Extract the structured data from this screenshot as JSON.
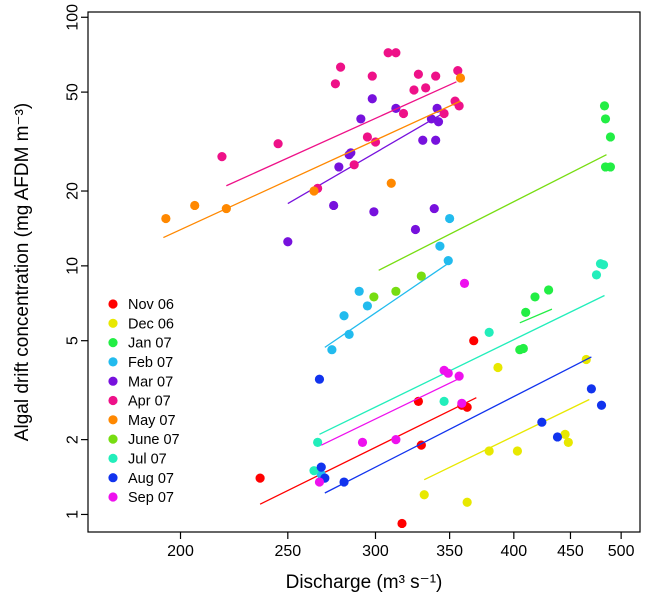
{
  "chart_data": {
    "type": "scatter",
    "title": "",
    "xlabel": "Discharge (m³ s⁻¹)",
    "ylabel": "Algal drift concentration (mg AFDM m⁻³)",
    "x_scale": "log",
    "y_scale": "log",
    "xlim": [
      165,
      520
    ],
    "ylim": [
      0.85,
      105
    ],
    "x_ticks": [
      200,
      250,
      300,
      350,
      400,
      450,
      500
    ],
    "y_ticks": [
      1,
      2,
      5,
      10,
      20,
      50,
      100
    ],
    "grid": false,
    "legend_position": "bottom-left",
    "series": [
      {
        "name": "Nov 06",
        "color": "#ff0000",
        "points": [
          [
            236,
            1.4
          ],
          [
            317,
            0.92
          ],
          [
            328,
            2.85
          ],
          [
            330,
            1.9
          ],
          [
            359,
            2.75
          ],
          [
            363,
            2.7
          ],
          [
            368,
            5.0
          ]
        ],
        "fit": {
          "x": [
            236,
            370
          ],
          "y": [
            1.1,
            2.95
          ]
        }
      },
      {
        "name": "Dec 06",
        "color": "#e8e800",
        "points": [
          [
            332,
            1.2
          ],
          [
            363,
            1.12
          ],
          [
            380,
            1.8
          ],
          [
            387,
            3.9
          ],
          [
            403,
            1.8
          ],
          [
            445,
            2.1
          ],
          [
            448,
            1.95
          ],
          [
            465,
            4.2
          ]
        ],
        "fit": {
          "x": [
            332,
            468
          ],
          "y": [
            1.38,
            2.9
          ]
        }
      },
      {
        "name": "Jan 07",
        "color": "#22ee44",
        "points": [
          [
            405,
            4.6
          ],
          [
            408,
            4.65
          ],
          [
            410,
            6.5
          ],
          [
            418,
            7.5
          ],
          [
            430,
            8.0
          ],
          [
            483,
            44
          ],
          [
            484,
            39
          ],
          [
            484,
            25
          ],
          [
            489,
            25
          ],
          [
            489,
            33
          ]
        ],
        "fit": {
          "x": [
            405,
            433
          ],
          "y": [
            5.9,
            6.7
          ]
        }
      },
      {
        "name": "Feb 07",
        "color": "#22bbee",
        "points": [
          [
            268,
            1.45
          ],
          [
            274,
            4.6
          ],
          [
            281,
            6.3
          ],
          [
            284,
            5.3
          ],
          [
            290,
            7.9
          ],
          [
            295,
            6.9
          ],
          [
            343,
            12
          ],
          [
            349,
            10.5
          ],
          [
            350,
            15.5
          ]
        ],
        "fit": {
          "x": [
            270,
            352
          ],
          "y": [
            4.7,
            10.5
          ]
        }
      },
      {
        "name": "Mar 07",
        "color": "#7711dd",
        "points": [
          [
            250,
            12.5
          ],
          [
            275,
            17.5
          ],
          [
            278,
            25
          ],
          [
            284,
            28
          ],
          [
            285,
            28.5
          ],
          [
            291,
            39
          ],
          [
            298,
            47
          ],
          [
            299,
            16.5
          ],
          [
            313,
            43
          ],
          [
            326,
            14
          ],
          [
            331,
            32
          ],
          [
            337,
            39
          ],
          [
            339,
            17
          ],
          [
            340,
            32
          ],
          [
            342,
            38
          ],
          [
            341,
            43
          ]
        ],
        "fit": {
          "x": [
            250,
            345
          ],
          "y": [
            17.8,
            41
          ]
        }
      },
      {
        "name": "Apr 07",
        "color": "#ee1188",
        "points": [
          [
            218,
            27.5
          ],
          [
            245,
            31
          ],
          [
            266,
            20.5
          ],
          [
            276,
            54
          ],
          [
            279,
            63
          ],
          [
            287,
            25.5
          ],
          [
            295,
            33
          ],
          [
            298,
            58
          ],
          [
            300,
            31.5
          ],
          [
            308,
            72
          ],
          [
            313,
            72
          ],
          [
            318,
            41
          ],
          [
            325,
            51
          ],
          [
            328,
            59
          ],
          [
            333,
            52
          ],
          [
            340,
            58
          ],
          [
            346,
            41
          ],
          [
            354,
            46
          ],
          [
            356,
            61
          ],
          [
            357,
            44
          ]
        ],
        "fit": {
          "x": [
            220,
            355
          ],
          "y": [
            21,
            55
          ]
        }
      },
      {
        "name": "May 07",
        "color": "#ff8800",
        "points": [
          [
            194,
            15.5
          ],
          [
            206,
            17.5
          ],
          [
            220,
            17
          ],
          [
            264,
            20
          ],
          [
            310,
            21.5
          ],
          [
            358,
            57
          ]
        ],
        "fit": {
          "x": [
            193,
            358
          ],
          "y": [
            13,
            46
          ]
        }
      },
      {
        "name": "June 07",
        "color": "#77dd11",
        "points": [
          [
            299,
            7.5
          ],
          [
            313,
            7.9
          ],
          [
            330,
            9.1
          ]
        ],
        "fit": {
          "x": [
            302,
            485
          ],
          "y": [
            9.6,
            28
          ]
        }
      },
      {
        "name": "Jul 07",
        "color": "#22eebb",
        "points": [
          [
            264,
            1.5
          ],
          [
            266,
            1.95
          ],
          [
            346,
            2.85
          ],
          [
            380,
            5.4
          ],
          [
            475,
            9.2
          ],
          [
            479,
            10.2
          ],
          [
            482,
            10.1
          ]
        ],
        "fit": {
          "x": [
            267,
            483
          ],
          "y": [
            2.1,
            7.6
          ]
        }
      },
      {
        "name": "Aug 07",
        "color": "#1133ee",
        "points": [
          [
            267,
            3.5
          ],
          [
            268,
            1.55
          ],
          [
            270,
            1.4
          ],
          [
            281,
            1.35
          ],
          [
            424,
            2.35
          ],
          [
            438,
            2.05
          ],
          [
            470,
            3.2
          ],
          [
            480,
            2.75
          ]
        ],
        "fit": {
          "x": [
            270,
            470
          ],
          "y": [
            1.22,
            4.3
          ]
        }
      },
      {
        "name": "Sep 07",
        "color": "#ee11ee",
        "points": [
          [
            267,
            1.35
          ],
          [
            292,
            1.95
          ],
          [
            313,
            2.0
          ],
          [
            346,
            3.8
          ],
          [
            349,
            3.7
          ],
          [
            357,
            3.6
          ],
          [
            359,
            2.8
          ],
          [
            361,
            8.5
          ]
        ],
        "fit": {
          "x": [
            268,
            356
          ],
          "y": [
            1.9,
            3.5
          ]
        }
      }
    ]
  }
}
